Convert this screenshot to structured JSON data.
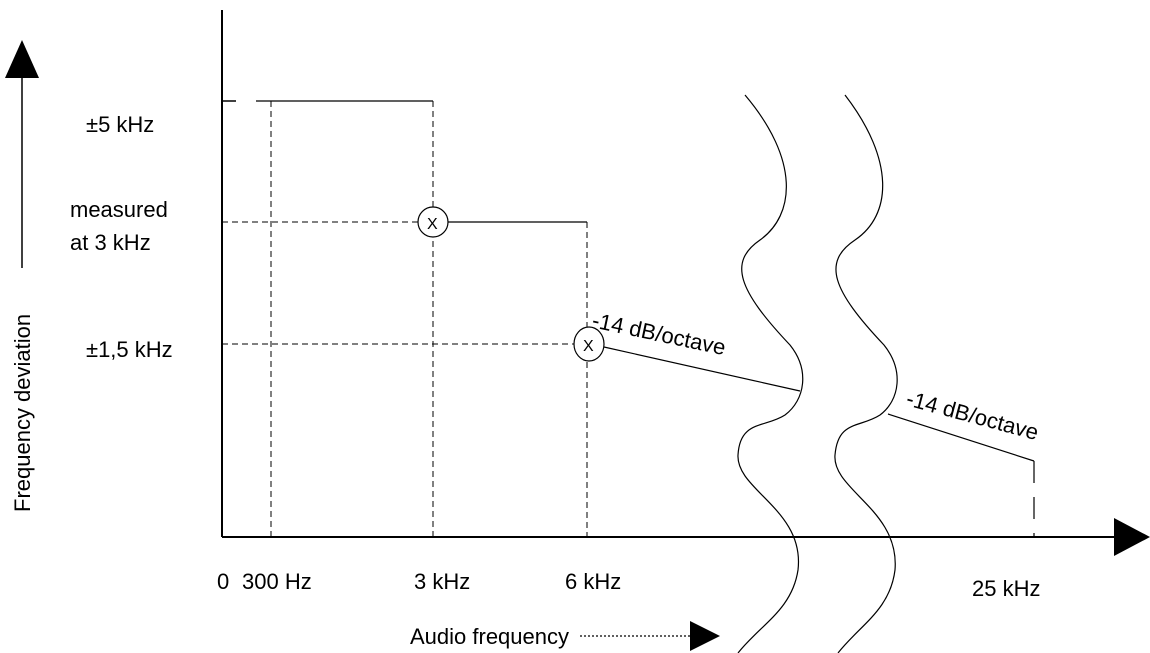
{
  "y_axis_title": "Frequency deviation",
  "x_axis_title": "Audio frequency",
  "y_labels": {
    "max": "±5 kHz",
    "measured_line1": "measured",
    "measured_line2": "at 3 kHz",
    "min": "±1,5 kHz"
  },
  "x_labels": {
    "origin": "0",
    "f300": "300 Hz",
    "f3k": "3 kHz",
    "f6k": "6 kHz",
    "f25k": "25 kHz"
  },
  "slope_labels": {
    "first": "-14 dB/octave",
    "second": "-14 dB/octave"
  },
  "marker_symbol": "X"
}
